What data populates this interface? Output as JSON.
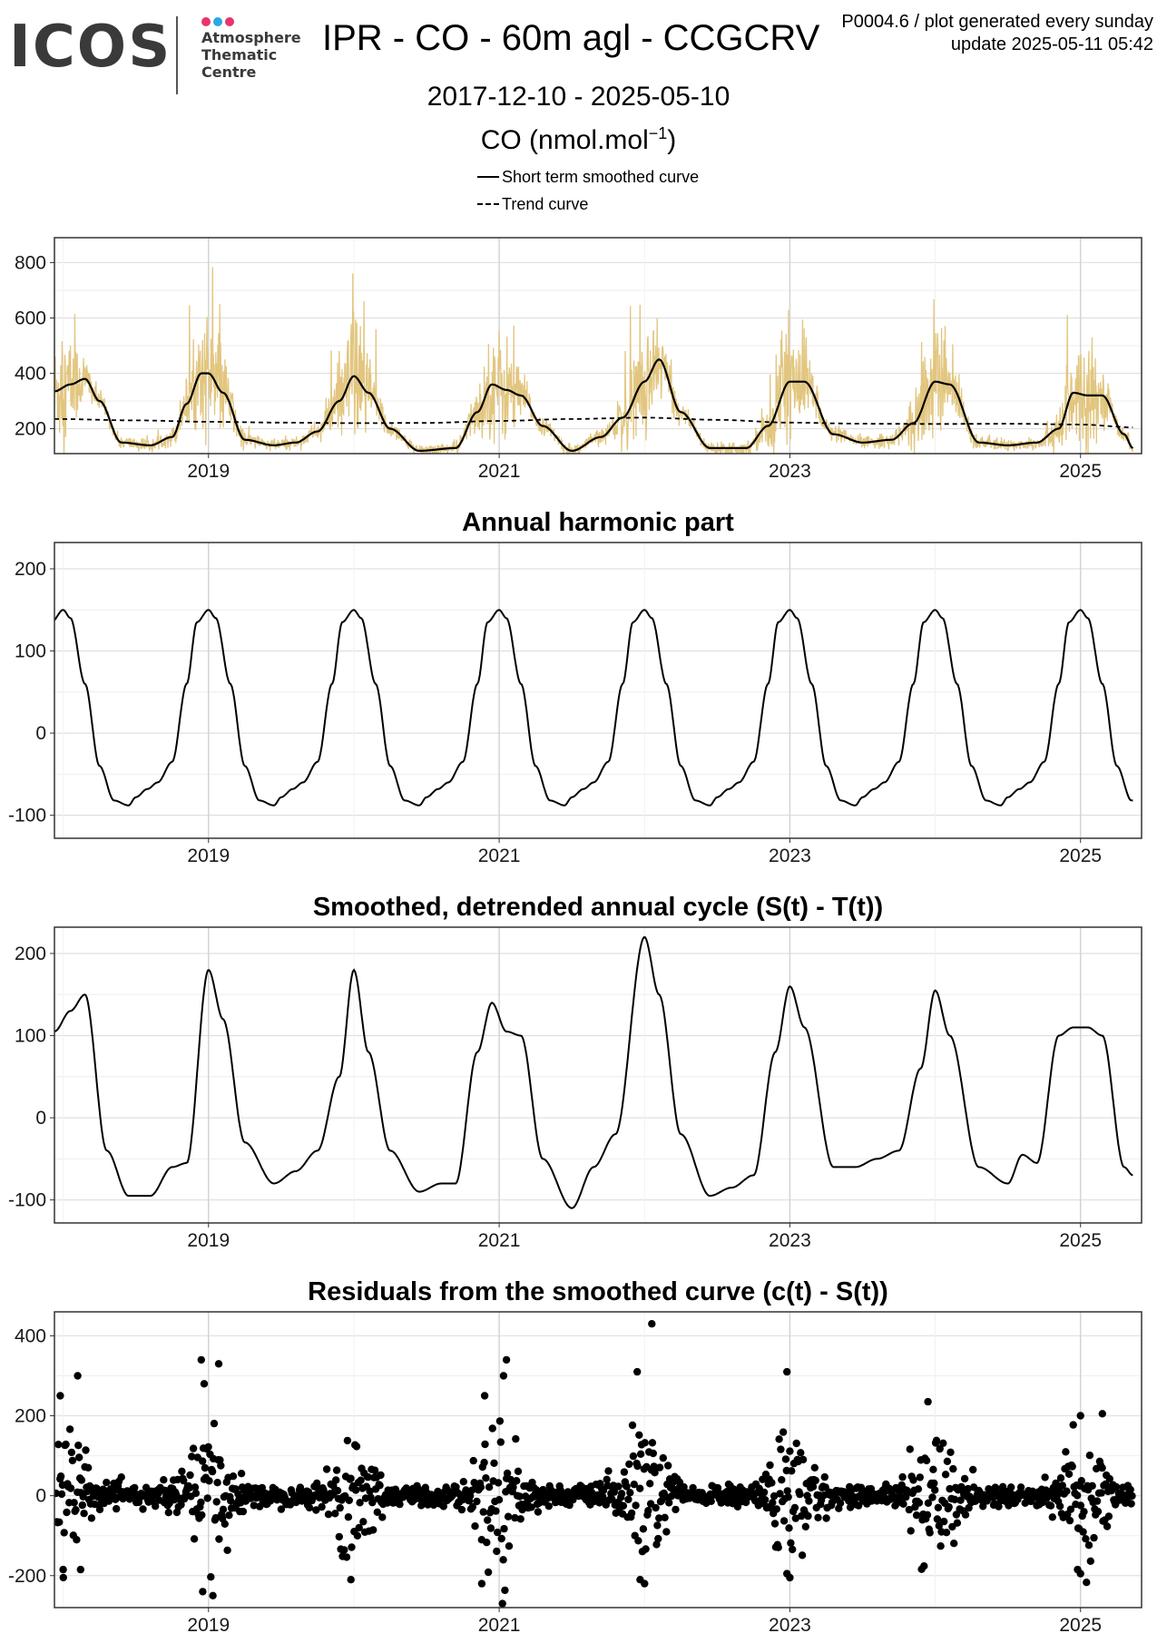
{
  "header": {
    "logo_text": "ICOS",
    "logo_sub": [
      "Atmosphere",
      "Thematic",
      "Centre"
    ],
    "title": "IPR - CO - 60m agl - CCGCRV",
    "info_line1": "P0004.6 / plot generated every sunday",
    "info_line2": "update  2025-05-11 05:42",
    "date_range": "2017-12-10 - 2025-05-10",
    "ylabel_main": "CO (nmol.mol",
    "ylabel_sup": "−1",
    "ylabel_close": ")"
  },
  "legend": {
    "items": [
      {
        "label": "Short term smoothed curve",
        "style": "solid"
      },
      {
        "label": "Trend curve",
        "style": "dashed"
      }
    ]
  },
  "colors": {
    "raw_data": "#e2c67f",
    "line": "#000000",
    "grid": "#e6e6e6",
    "grid_major": "#cfcfcf",
    "logo_dots": [
      "#e8336b",
      "#2aa7e5",
      "#e8336b"
    ]
  },
  "chart_data": [
    {
      "type": "line",
      "title": "",
      "xlabel": "",
      "ylabel": "CO (nmol.mol−1)",
      "xlim": [
        2017.94,
        2025.42
      ],
      "ylim": [
        110,
        890
      ],
      "yticks": [
        200,
        400,
        600,
        800
      ],
      "xticks": [
        2019,
        2021,
        2023,
        2025
      ],
      "raw_data_note": "daily CO mole fraction, range ~110–840",
      "series": [
        {
          "name": "Short term smoothed curve",
          "x": [
            2017.94,
            2018.05,
            2018.15,
            2018.25,
            2018.4,
            2018.6,
            2018.75,
            2018.85,
            2018.95,
            2019.0,
            2019.1,
            2019.25,
            2019.45,
            2019.6,
            2019.75,
            2019.9,
            2020.0,
            2020.1,
            2020.25,
            2020.45,
            2020.7,
            2020.85,
            2020.95,
            2021.05,
            2021.15,
            2021.3,
            2021.5,
            2021.7,
            2021.85,
            2022.0,
            2022.1,
            2022.25,
            2022.45,
            2022.7,
            2022.85,
            2023.0,
            2023.1,
            2023.3,
            2023.5,
            2023.7,
            2023.85,
            2024.0,
            2024.1,
            2024.3,
            2024.5,
            2024.7,
            2024.85,
            2024.95,
            2025.05,
            2025.15,
            2025.3,
            2025.36
          ],
          "y": [
            335,
            360,
            380,
            300,
            150,
            140,
            170,
            290,
            400,
            400,
            330,
            160,
            140,
            150,
            190,
            300,
            390,
            330,
            200,
            120,
            130,
            260,
            360,
            340,
            320,
            210,
            120,
            170,
            240,
            370,
            450,
            260,
            130,
            130,
            210,
            370,
            370,
            180,
            150,
            160,
            220,
            370,
            360,
            150,
            140,
            150,
            200,
            330,
            320,
            320,
            180,
            130
          ]
        },
        {
          "name": "Trend curve",
          "x": [
            2017.94,
            2018.5,
            2019.0,
            2019.5,
            2020.0,
            2020.5,
            2021.0,
            2021.5,
            2022.0,
            2022.5,
            2023.0,
            2023.5,
            2024.0,
            2024.5,
            2025.0,
            2025.36
          ],
          "y": [
            235,
            230,
            225,
            222,
            220,
            221,
            228,
            235,
            240,
            232,
            222,
            218,
            217,
            218,
            215,
            205
          ]
        }
      ]
    },
    {
      "type": "line",
      "title": "Annual harmonic part",
      "xlabel": "",
      "ylabel": "",
      "xlim": [
        2017.94,
        2025.42
      ],
      "ylim": [
        -128,
        232
      ],
      "yticks": [
        -100,
        0,
        100,
        200
      ],
      "xticks": [
        2019,
        2021,
        2023,
        2025
      ],
      "series": [
        {
          "name": "",
          "periodic_x": [
            0.0,
            0.05,
            0.15,
            0.25,
            0.35,
            0.45,
            0.5,
            0.58,
            0.65,
            0.75,
            0.85,
            0.92,
            1.0
          ],
          "periodic_y": [
            150,
            140,
            60,
            -40,
            -82,
            -88,
            -78,
            -68,
            -60,
            -35,
            60,
            135,
            150
          ],
          "x_range": [
            2017.94,
            2025.36
          ]
        }
      ]
    },
    {
      "type": "line",
      "title": "Smoothed, detrended annual cycle (S(t) - T(t))",
      "xlabel": "",
      "ylabel": "",
      "xlim": [
        2017.94,
        2025.42
      ],
      "ylim": [
        -128,
        232
      ],
      "yticks": [
        -100,
        0,
        100,
        200
      ],
      "xticks": [
        2019,
        2021,
        2023,
        2025
      ],
      "series": [
        {
          "name": "",
          "x": [
            2017.94,
            2018.05,
            2018.15,
            2018.3,
            2018.45,
            2018.6,
            2018.75,
            2018.85,
            2019.0,
            2019.1,
            2019.25,
            2019.45,
            2019.6,
            2019.75,
            2019.9,
            2020.0,
            2020.1,
            2020.25,
            2020.45,
            2020.6,
            2020.7,
            2020.85,
            2020.95,
            2021.05,
            2021.15,
            2021.3,
            2021.5,
            2021.65,
            2021.8,
            2022.0,
            2022.1,
            2022.25,
            2022.45,
            2022.6,
            2022.75,
            2022.9,
            2023.0,
            2023.1,
            2023.3,
            2023.45,
            2023.6,
            2023.75,
            2023.9,
            2024.0,
            2024.1,
            2024.3,
            2024.5,
            2024.6,
            2024.7,
            2024.85,
            2024.95,
            2025.05,
            2025.15,
            2025.3,
            2025.36
          ],
          "y": [
            105,
            130,
            150,
            -40,
            -95,
            -95,
            -60,
            -55,
            180,
            120,
            -30,
            -80,
            -65,
            -40,
            50,
            180,
            80,
            -40,
            -90,
            -80,
            -80,
            80,
            140,
            105,
            100,
            -50,
            -110,
            -60,
            -20,
            220,
            150,
            -20,
            -95,
            -85,
            -70,
            80,
            160,
            110,
            -60,
            -60,
            -50,
            -40,
            60,
            155,
            100,
            -60,
            -80,
            -45,
            -55,
            100,
            110,
            110,
            100,
            -60,
            -70
          ]
        }
      ]
    },
    {
      "type": "scatter",
      "title": "Residuals from the smoothed curve (c(t) - S(t))",
      "xlabel": "",
      "ylabel": "",
      "xlim": [
        2017.94,
        2025.42
      ],
      "ylim": [
        -280,
        460
      ],
      "yticks": [
        -200,
        0,
        200,
        400
      ],
      "xticks": [
        2019,
        2021,
        2023,
        2025
      ],
      "outliers": [
        {
          "x": 2018.1,
          "y": 300
        },
        {
          "x": 2017.98,
          "y": 250
        },
        {
          "x": 2018.0,
          "y": -185
        },
        {
          "x": 2018.12,
          "y": -185
        },
        {
          "x": 2018.95,
          "y": 340
        },
        {
          "x": 2019.07,
          "y": 330
        },
        {
          "x": 2018.97,
          "y": 280
        },
        {
          "x": 2018.96,
          "y": -240
        },
        {
          "x": 2019.03,
          "y": -250
        },
        {
          "x": 2019.98,
          "y": -210
        },
        {
          "x": 2020.9,
          "y": 250
        },
        {
          "x": 2021.05,
          "y": 340
        },
        {
          "x": 2021.03,
          "y": 300
        },
        {
          "x": 2020.88,
          "y": -220
        },
        {
          "x": 2022.05,
          "y": 430
        },
        {
          "x": 2021.95,
          "y": 310
        },
        {
          "x": 2021.97,
          "y": -210
        },
        {
          "x": 2022.0,
          "y": -220
        },
        {
          "x": 2022.98,
          "y": 310
        },
        {
          "x": 2022.98,
          "y": -195
        },
        {
          "x": 2023.0,
          "y": -205
        },
        {
          "x": 2023.95,
          "y": 235
        },
        {
          "x": 2025.0,
          "y": 200
        },
        {
          "x": 2025.15,
          "y": 205
        },
        {
          "x": 2024.98,
          "y": -185
        },
        {
          "x": 2025.0,
          "y": -195
        }
      ],
      "note": "approximately 2700 daily residual points; amplitude peaks near each winter (~±150) and stays within ~±20 in summer"
    }
  ]
}
